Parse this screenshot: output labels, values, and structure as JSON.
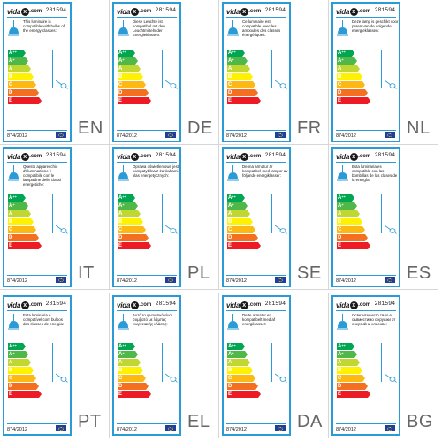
{
  "brand": {
    "prefix": "vida",
    "mark": "x",
    "suffix": ".com"
  },
  "product_code": "281594",
  "regulation": "874/2012",
  "scale_classes": [
    "A++",
    "A+",
    "A",
    "B",
    "C",
    "D",
    "E"
  ],
  "scale_colors": [
    "#00a651",
    "#50b848",
    "#bfd730",
    "#fff200",
    "#fdb913",
    "#f37021",
    "#ed1c24"
  ],
  "languages": [
    {
      "code": "EN",
      "text": "This luminaire is compatible with bulbs of the energy classes:"
    },
    {
      "code": "DE",
      "text": "Diese Leuchte ist kompatibel mit den Leuchtmitteln der Energieklassen:"
    },
    {
      "code": "FR",
      "text": "Ce luminaire est compatible avec les ampoules des classes énergétiques:"
    },
    {
      "code": "NL",
      "text": "Deze lamp is geschikt voor peren van de volgende energieklassen:"
    },
    {
      "code": "IT",
      "text": "Questo apparecchio d'illuminazione è compatibile con le lampadine delle classi energetiche:"
    },
    {
      "code": "PL",
      "text": "Oprawa oświetleniowa jest kompatybilna z żarówkami klas energetycznych:"
    },
    {
      "code": "SE",
      "text": "Denna armatur är kompatibel med lampor av följande energiklasser:"
    },
    {
      "code": "ES",
      "text": "Esta luminaria es compatible con las bombillas de las clases de la energía:"
    },
    {
      "code": "PT",
      "text": "Esta luminária é compatível com bulbos das classes de energia:"
    },
    {
      "code": "EL",
      "text": "Αυτό το φωτιστικό είναι συμβατό με λάμπες ενεργειακής κλάσης:"
    },
    {
      "code": "DA",
      "text": "Dette armatur er kompatibelt med af energiklasser:"
    },
    {
      "code": "BG",
      "text": "Осветителното тяло е съвместимо с крушки от енергийни класове:"
    }
  ]
}
